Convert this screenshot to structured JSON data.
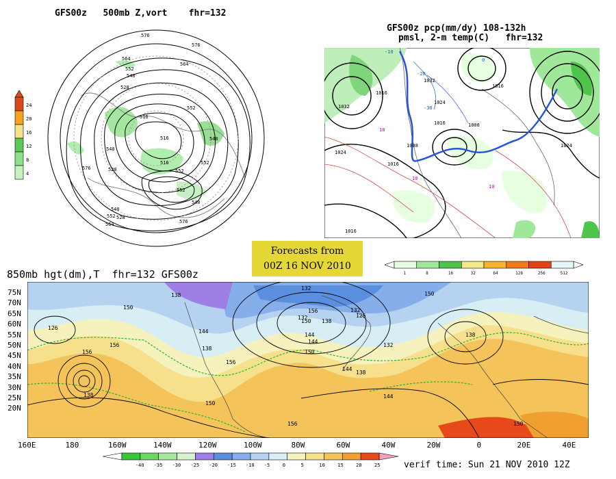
{
  "panels": {
    "top_left": {
      "title": "GFS00z   500mb Z,vort    fhr=132",
      "colorbar_labels": [
        "24",
        "20",
        "16",
        "12",
        "8",
        "4"
      ],
      "colorbar_colors": [
        "#d94a1c",
        "#f5a21f",
        "#f4e38a",
        "#5ec75a",
        "#8ee08a",
        "#c6f2c0"
      ],
      "contour_labels": [
        "576",
        "564",
        "552",
        "540",
        "528",
        "516",
        "576",
        "552",
        "540",
        "528",
        "516",
        "540",
        "552",
        "564",
        "576",
        "552",
        "540",
        "528",
        "516",
        "552",
        "540",
        "576",
        "564",
        "552"
      ]
    },
    "top_right": {
      "title_line1": "GFS00z pcp(mm/dy) 108-132h",
      "title_line2": "pmsl, 2-m temp(C)   fhr=132",
      "colorbar_labels": [
        "1",
        "8",
        "16",
        "32",
        "64",
        "128",
        "256",
        "512"
      ],
      "colorbar_colors": [
        "#e6ffe0",
        "#9fe89a",
        "#4fc44a",
        "#f3e88a",
        "#f7b232",
        "#f07a1c",
        "#e34214",
        "#e6f7f7"
      ],
      "contour_labels": [
        "1032",
        "1016",
        "1032",
        "1024",
        "1016",
        "1008",
        "1024",
        "1016",
        "1008",
        "1016",
        "1024",
        "1016"
      ],
      "temp_labels": [
        "-10",
        "-20",
        "-30",
        "10",
        "0",
        "10",
        "10"
      ]
    },
    "forecast_box": {
      "line1": "Forecasts from",
      "line2": "00Z 16 NOV 2010"
    },
    "bottom": {
      "title": "850mb hgt(dm),T  fhr=132 GFS00z",
      "lat_labels": [
        "75N",
        "70N",
        "65N",
        "60N",
        "55N",
        "50N",
        "45N",
        "40N",
        "35N",
        "30N",
        "25N",
        "20N"
      ],
      "lon_labels": [
        "160E",
        "180",
        "160W",
        "140W",
        "120W",
        "100W",
        "80W",
        "60W",
        "40W",
        "20W",
        "0",
        "20E",
        "40E"
      ],
      "contour_labels": [
        "150",
        "138",
        "126",
        "132",
        "156",
        "144",
        "138",
        "150",
        "156",
        "144",
        "132",
        "126",
        "132",
        "138",
        "144",
        "150",
        "156",
        "144",
        "138",
        "150",
        "138",
        "156",
        "150",
        "156",
        "144",
        "138",
        "150",
        "132"
      ],
      "colorbar_labels": [
        "-40",
        "-35",
        "-30",
        "-25",
        "-20",
        "-15",
        "-10",
        "-5",
        "0",
        "5",
        "10",
        "15",
        "20",
        "25"
      ],
      "colorbar_colors": [
        "#39c63a",
        "#6cd862",
        "#a7e89e",
        "#d6f3cf",
        "#9e7fe6",
        "#5a8fe0",
        "#86aeea",
        "#b6d2f1",
        "#d7eef5",
        "#f5f2bd",
        "#f6e08c",
        "#f4c35a",
        "#f0a030",
        "#e8491a"
      ],
      "verif_time": "verif time: Sun 21 NOV 2010 12Z"
    }
  }
}
